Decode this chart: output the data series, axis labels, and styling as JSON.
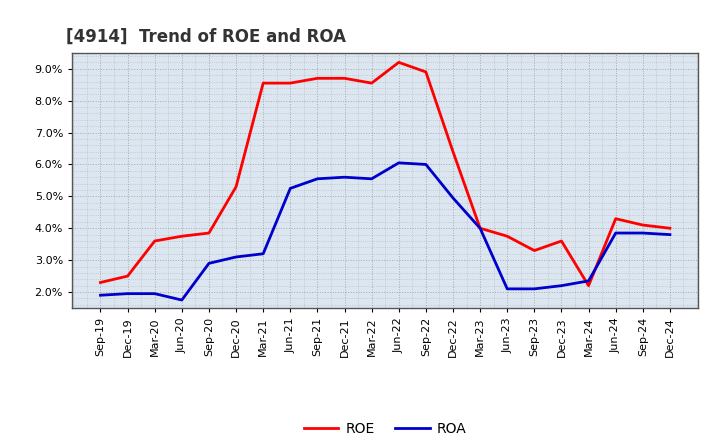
{
  "title": "[4914]  Trend of ROE and ROA",
  "x_labels": [
    "Sep-19",
    "Dec-19",
    "Mar-20",
    "Jun-20",
    "Sep-20",
    "Dec-20",
    "Mar-21",
    "Jun-21",
    "Sep-21",
    "Dec-21",
    "Mar-22",
    "Jun-22",
    "Sep-22",
    "Dec-22",
    "Mar-23",
    "Jun-23",
    "Sep-23",
    "Dec-23",
    "Mar-24",
    "Jun-24",
    "Sep-24",
    "Dec-24"
  ],
  "roe": [
    2.3,
    2.5,
    3.6,
    3.75,
    3.85,
    5.3,
    8.55,
    8.55,
    8.7,
    8.7,
    8.55,
    9.2,
    8.9,
    6.4,
    4.0,
    3.75,
    3.3,
    3.6,
    2.2,
    4.3,
    4.1,
    4.0
  ],
  "roa": [
    1.9,
    1.95,
    1.95,
    1.75,
    2.9,
    3.1,
    3.2,
    5.25,
    5.55,
    5.6,
    5.55,
    6.05,
    6.0,
    4.95,
    4.0,
    2.1,
    2.1,
    2.2,
    2.35,
    3.85,
    3.85,
    3.8
  ],
  "roe_color": "#ff0000",
  "roa_color": "#0000cc",
  "ylim": [
    1.5,
    9.5
  ],
  "yticks": [
    2.0,
    3.0,
    4.0,
    5.0,
    6.0,
    7.0,
    8.0,
    9.0
  ],
  "background_color": "#ffffff",
  "plot_bg_color": "#dce6f0",
  "grid_color": "#999999",
  "line_width": 2.0,
  "title_fontsize": 12,
  "tick_fontsize": 8,
  "legend_fontsize": 10
}
